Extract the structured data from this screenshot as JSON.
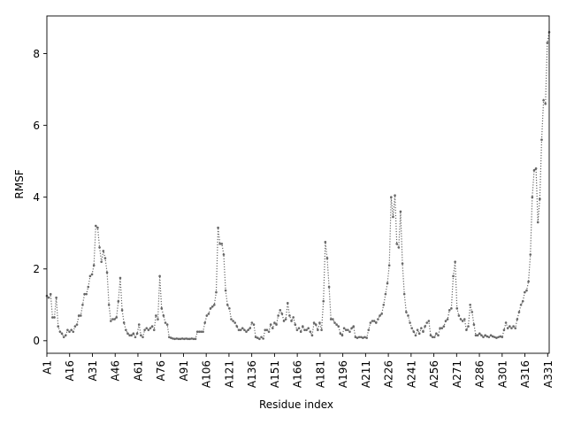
{
  "chart_data": {
    "type": "line",
    "xlabel": "Residue index",
    "ylabel": "RMSF",
    "xlim": [
      1,
      332
    ],
    "ylim": [
      -0.35,
      9.05
    ],
    "grid": false,
    "line_color": "#666666",
    "line_style": "dotted with point markers",
    "x_ticks": [
      1,
      16,
      31,
      46,
      61,
      76,
      91,
      106,
      121,
      136,
      151,
      166,
      181,
      196,
      211,
      226,
      241,
      256,
      271,
      286,
      301,
      316,
      331
    ],
    "x_tick_labels": [
      "A1",
      "A16",
      "A31",
      "A46",
      "A61",
      "A76",
      "A91",
      "A106",
      "A121",
      "A136",
      "A151",
      "A166",
      "A181",
      "A196",
      "A211",
      "A226",
      "A241",
      "A256",
      "A271",
      "A286",
      "A301",
      "A316",
      "A331"
    ],
    "y_ticks": [
      0,
      2,
      4,
      6,
      8
    ],
    "y_tick_labels": [
      "0",
      "2",
      "4",
      "6",
      "8"
    ],
    "series": [
      {
        "values": [
          1.25,
          1.2,
          1.3,
          0.65,
          0.65,
          1.2,
          0.4,
          0.25,
          0.2,
          0.1,
          0.15,
          0.3,
          0.25,
          0.3,
          0.25,
          0.4,
          0.45,
          0.7,
          0.7,
          1.0,
          1.3,
          1.3,
          1.5,
          1.8,
          1.85,
          2.1,
          3.2,
          3.15,
          2.6,
          2.2,
          2.5,
          2.3,
          1.9,
          1.0,
          0.55,
          0.6,
          0.6,
          0.65,
          1.1,
          1.75,
          0.85,
          0.5,
          0.3,
          0.2,
          0.15,
          0.15,
          0.2,
          0.1,
          0.2,
          0.45,
          0.15,
          0.1,
          0.3,
          0.35,
          0.3,
          0.35,
          0.4,
          0.3,
          0.7,
          0.6,
          1.8,
          0.9,
          0.7,
          0.5,
          0.45,
          0.1,
          0.08,
          0.06,
          0.05,
          0.06,
          0.05,
          0.05,
          0.06,
          0.05,
          0.06,
          0.05,
          0.05,
          0.06,
          0.05,
          0.05,
          0.25,
          0.25,
          0.25,
          0.25,
          0.5,
          0.7,
          0.75,
          0.9,
          0.95,
          1.0,
          1.35,
          3.15,
          2.7,
          2.7,
          2.4,
          1.4,
          1.0,
          0.9,
          0.6,
          0.55,
          0.5,
          0.4,
          0.3,
          0.3,
          0.35,
          0.3,
          0.25,
          0.3,
          0.35,
          0.5,
          0.45,
          0.1,
          0.08,
          0.05,
          0.1,
          0.06,
          0.3,
          0.3,
          0.25,
          0.45,
          0.35,
          0.5,
          0.45,
          0.7,
          0.85,
          0.75,
          0.55,
          0.6,
          1.05,
          0.7,
          0.55,
          0.65,
          0.45,
          0.3,
          0.35,
          0.25,
          0.4,
          0.3,
          0.3,
          0.35,
          0.25,
          0.15,
          0.5,
          0.45,
          0.3,
          0.5,
          0.3,
          1.1,
          2.75,
          2.3,
          1.5,
          0.6,
          0.6,
          0.5,
          0.45,
          0.4,
          0.2,
          0.15,
          0.35,
          0.3,
          0.3,
          0.25,
          0.35,
          0.4,
          0.1,
          0.08,
          0.1,
          0.1,
          0.08,
          0.1,
          0.08,
          0.3,
          0.5,
          0.55,
          0.55,
          0.5,
          0.6,
          0.7,
          0.75,
          1.0,
          1.3,
          1.6,
          2.1,
          4.0,
          3.45,
          4.05,
          2.7,
          2.6,
          3.6,
          2.15,
          1.3,
          0.8,
          0.7,
          0.5,
          0.35,
          0.25,
          0.15,
          0.3,
          0.2,
          0.35,
          0.25,
          0.4,
          0.5,
          0.55,
          0.15,
          0.1,
          0.1,
          0.2,
          0.15,
          0.35,
          0.35,
          0.4,
          0.55,
          0.6,
          0.85,
          0.9,
          1.8,
          2.2,
          0.9,
          0.7,
          0.6,
          0.55,
          0.6,
          0.3,
          0.4,
          1.0,
          0.8,
          0.45,
          0.15,
          0.15,
          0.2,
          0.15,
          0.1,
          0.15,
          0.12,
          0.1,
          0.15,
          0.12,
          0.1,
          0.08,
          0.1,
          0.12,
          0.1,
          0.3,
          0.5,
          0.35,
          0.4,
          0.35,
          0.4,
          0.35,
          0.6,
          0.8,
          1.0,
          1.1,
          1.35,
          1.4,
          1.65,
          2.4,
          4.0,
          4.75,
          4.8,
          3.3,
          3.95,
          5.6,
          6.7,
          6.6,
          8.3,
          8.6
        ]
      }
    ]
  }
}
